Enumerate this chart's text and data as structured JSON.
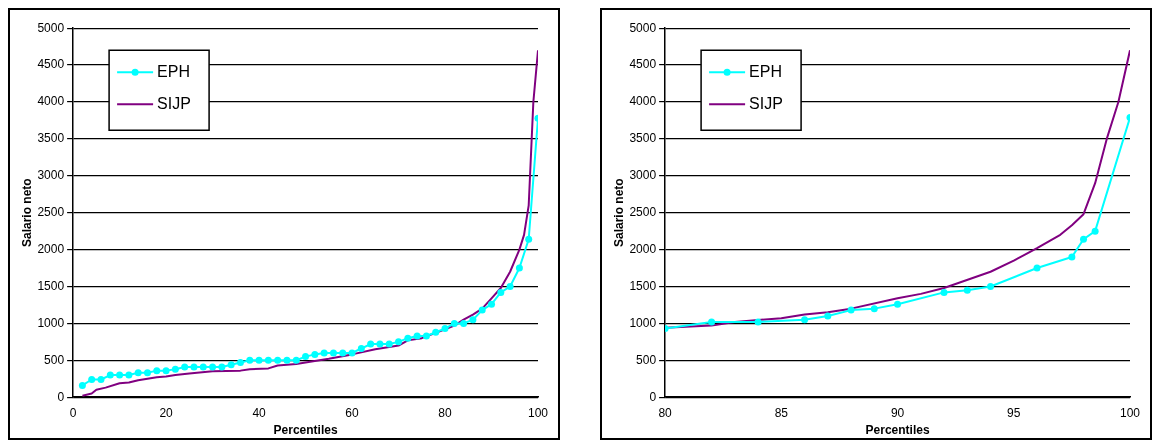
{
  "chart_data": [
    {
      "type": "line",
      "xlabel": "Percentiles",
      "ylabel": "Salario neto",
      "xlim": [
        0,
        100
      ],
      "xticks": [
        0,
        20,
        40,
        60,
        80,
        100
      ],
      "ylim": [
        0,
        5000
      ],
      "yticks": [
        0,
        500,
        1000,
        1500,
        2000,
        2500,
        3000,
        3500,
        4000,
        4500,
        5000
      ],
      "grid": "y",
      "legend": "top left",
      "series": [
        {
          "name": "EPH",
          "color": "#00ffff",
          "marker": "circle",
          "x": [
            2,
            4,
            6,
            8,
            10,
            12,
            14,
            16,
            18,
            20,
            22,
            24,
            26,
            28,
            30,
            32,
            34,
            36,
            38,
            40,
            42,
            44,
            46,
            48,
            50,
            52,
            54,
            56,
            58,
            60,
            62,
            64,
            66,
            68,
            70,
            72,
            74,
            76,
            78,
            80,
            82,
            84,
            86,
            88,
            90,
            92,
            94,
            96,
            98,
            100
          ],
          "values": [
            160,
            240,
            240,
            300,
            300,
            300,
            330,
            330,
            360,
            360,
            380,
            410,
            410,
            410,
            410,
            410,
            440,
            470,
            500,
            500,
            500,
            500,
            500,
            500,
            550,
            580,
            600,
            600,
            600,
            600,
            660,
            720,
            720,
            720,
            750,
            800,
            830,
            830,
            880,
            930,
            1000,
            1000,
            1050,
            1180,
            1260,
            1420,
            1500,
            1750,
            2140,
            3780
          ]
        },
        {
          "name": "SIJP",
          "color": "#800080",
          "marker": "none",
          "x": [
            2,
            4,
            5,
            7,
            10,
            12,
            14,
            18,
            20,
            22,
            25,
            30,
            36,
            38,
            42,
            44,
            48,
            50,
            55,
            60,
            65,
            70,
            72,
            75,
            80,
            82,
            84,
            86,
            88,
            90,
            92,
            94,
            96,
            97,
            98,
            99,
            100
          ],
          "values": [
            20,
            50,
            100,
            130,
            190,
            200,
            230,
            270,
            280,
            300,
            320,
            350,
            360,
            380,
            390,
            430,
            450,
            470,
            520,
            580,
            650,
            700,
            770,
            800,
            920,
            970,
            1050,
            1120,
            1200,
            1340,
            1480,
            1700,
            2000,
            2200,
            2600,
            4000,
            4700
          ]
        }
      ]
    },
    {
      "type": "line",
      "xlabel": "Percentiles",
      "ylabel": "Salario neto",
      "xlim": [
        80,
        100
      ],
      "xticks": [
        80,
        85,
        90,
        95,
        100
      ],
      "ylim": [
        0,
        5000
      ],
      "yticks": [
        0,
        500,
        1000,
        1500,
        2000,
        2500,
        3000,
        3500,
        4000,
        4500,
        5000
      ],
      "grid": "y",
      "legend": "top left",
      "series": [
        {
          "name": "EPH",
          "color": "#00ffff",
          "marker": "circle",
          "x": [
            80,
            82,
            84,
            86,
            87,
            88,
            89,
            90,
            92,
            93,
            94,
            96,
            97.5,
            98,
            98.5,
            100
          ],
          "values": [
            930,
            1020,
            1020,
            1050,
            1100,
            1180,
            1200,
            1260,
            1420,
            1450,
            1500,
            1750,
            1900,
            2140,
            2250,
            3790
          ]
        },
        {
          "name": "SIJP",
          "color": "#800080",
          "marker": "none",
          "x": [
            80,
            82,
            83,
            85,
            86,
            87,
            88,
            90,
            91,
            92,
            94,
            95,
            96,
            97,
            97.5,
            98,
            98.5,
            99,
            99.5,
            100
          ],
          "values": [
            940,
            970,
            1020,
            1070,
            1120,
            1150,
            1200,
            1340,
            1400,
            1480,
            1700,
            1850,
            2020,
            2200,
            2330,
            2480,
            2900,
            3500,
            4000,
            4700
          ]
        }
      ]
    }
  ]
}
